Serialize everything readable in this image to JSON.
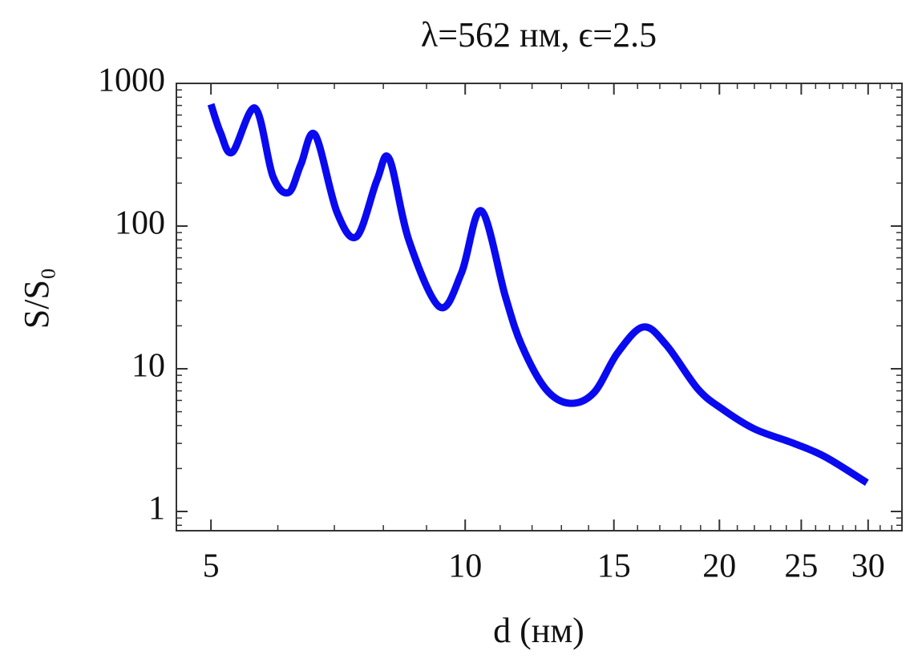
{
  "chart_data": {
    "type": "line",
    "title": "λ=562 нм, ϵ=2.5",
    "x_label": "d (нм)",
    "y_label": "S/S₀",
    "x_scale": "log",
    "y_scale": "log",
    "xlim": [
      4.55,
      32.9
    ],
    "ylim": [
      0.733,
      1000
    ],
    "xticks": [
      5,
      10,
      15,
      20,
      25,
      30
    ],
    "yticks": [
      1,
      10,
      100,
      1000
    ],
    "series": [
      {
        "name": "S/S₀",
        "color": "#0a0af0",
        "x": [
          5,
          5.13,
          5.3,
          5.64,
          5.92,
          6.18,
          6.39,
          6.64,
          7.05,
          7.44,
          7.86,
          8.13,
          8.58,
          9.33,
          9.9,
          10.45,
          11.16,
          11.66,
          12.45,
          13.29,
          14.2,
          15.15,
          16.25,
          17.3,
          18.85,
          20.14,
          22.0,
          24.5,
          26.7,
          29.9
        ],
        "values": [
          714,
          454,
          329,
          670,
          223,
          172,
          271,
          437,
          125,
          84.6,
          209,
          296,
          79,
          27.1,
          47,
          128,
          32,
          14.7,
          7.24,
          5.73,
          6.78,
          12.9,
          19.6,
          14.7,
          7.24,
          5.24,
          3.79,
          3.0,
          2.41,
          1.59
        ]
      }
    ]
  }
}
